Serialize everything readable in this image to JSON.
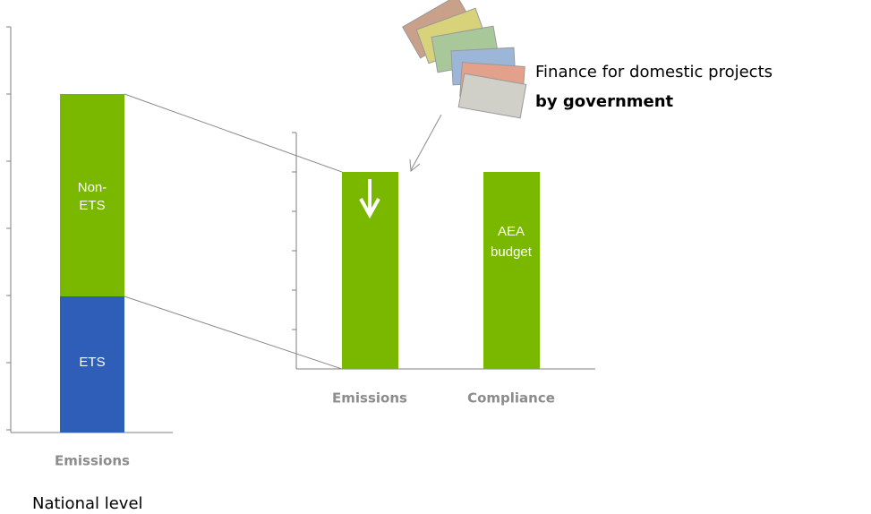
{
  "left_chart": {
    "category": "Emissions",
    "segments": [
      {
        "lines": [
          "ETS"
        ]
      },
      {
        "lines": [
          "Non-",
          "ETS"
        ]
      }
    ],
    "caption": "National level"
  },
  "right_chart": {
    "categories": [
      "Emissions",
      "Compliance"
    ],
    "bar_label": [
      "AEA",
      "budget"
    ]
  },
  "annotation": {
    "line1": "Finance for domestic projects",
    "line2": "by government"
  }
}
